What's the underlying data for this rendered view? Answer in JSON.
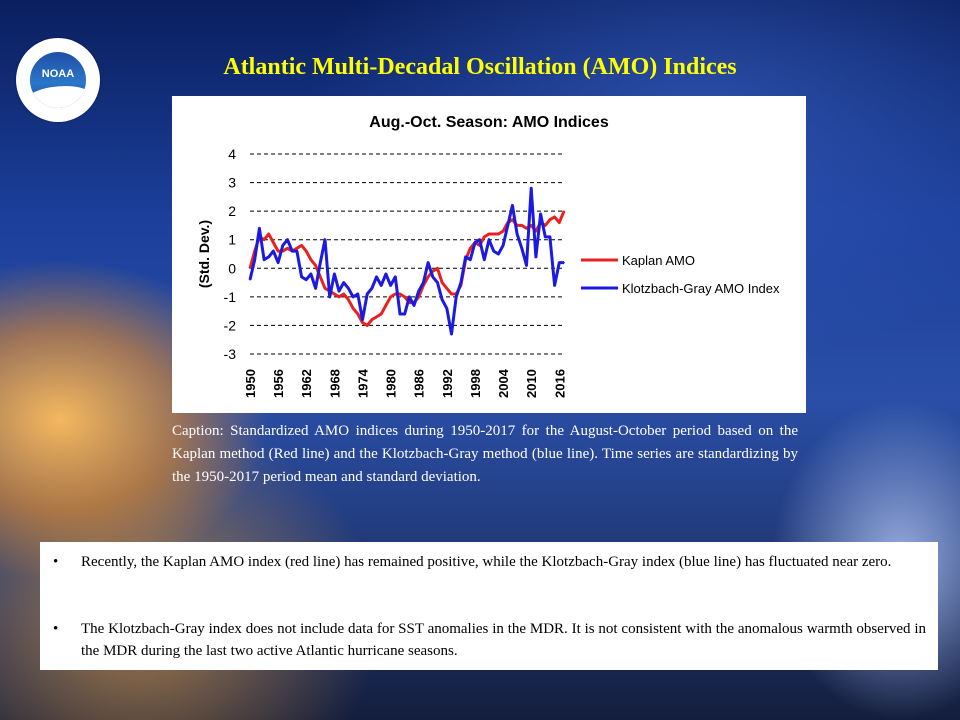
{
  "slide": {
    "title": "Atlantic Multi-Decadal Oscillation (AMO) Indices",
    "logo_text": "NOAA",
    "caption": "Caption: Standardized AMO indices during 1950-2017 for the August-October period based on the Kaplan method (Red line) and the Klotzbach-Gray method (blue line). Time series are standardizing by the 1950-2017 period mean and standard deviation.",
    "bullets": [
      "Recently, the Kaplan AMO index (red line) has remained positive, while the Klotzbach-Gray index (blue line) has fluctuated near zero.",
      "The Klotzbach-Gray index does not include data for SST anomalies in the MDR. It is not consistent with the anomalous warmth observed in the MDR during the last two active Atlantic hurricane seasons."
    ],
    "colors": {
      "title": "#ffff00",
      "kaplan": "#e8231f",
      "kg": "#1a1ae0"
    }
  },
  "chart_data": {
    "type": "line",
    "title": "Aug.-Oct. Season: AMO Indices",
    "xlabel": "",
    "ylabel": "(Std. Dev.)",
    "ylim": [
      -3,
      4
    ],
    "yticks": [
      "4",
      "3",
      "2",
      "1",
      "0",
      "-1",
      "-2",
      "-3"
    ],
    "xticks": [
      "1950",
      "1956",
      "1962",
      "1968",
      "1974",
      "1980",
      "1986",
      "1992",
      "1998",
      "2004",
      "2010",
      "2016"
    ],
    "grid": "dashed horizontal",
    "legend": "right",
    "x": [
      1950,
      1951,
      1952,
      1953,
      1954,
      1955,
      1956,
      1957,
      1958,
      1959,
      1960,
      1961,
      1962,
      1963,
      1964,
      1965,
      1966,
      1967,
      1968,
      1969,
      1970,
      1971,
      1972,
      1973,
      1974,
      1975,
      1976,
      1977,
      1978,
      1979,
      1980,
      1981,
      1982,
      1983,
      1984,
      1985,
      1986,
      1987,
      1988,
      1989,
      1990,
      1991,
      1992,
      1993,
      1994,
      1995,
      1996,
      1997,
      1998,
      1999,
      2000,
      2001,
      2002,
      2003,
      2004,
      2005,
      2006,
      2007,
      2008,
      2009,
      2010,
      2011,
      2012,
      2013,
      2014,
      2015,
      2016,
      2017
    ],
    "series": [
      {
        "name": "Kaplan AMO",
        "color": "#e8231f",
        "values": [
          0.0,
          0.6,
          1.1,
          1.0,
          1.2,
          0.9,
          0.6,
          0.6,
          0.7,
          0.6,
          0.7,
          0.8,
          0.6,
          0.3,
          0.1,
          -0.3,
          -0.7,
          -0.8,
          -0.9,
          -1.0,
          -0.9,
          -1.1,
          -1.4,
          -1.6,
          -1.9,
          -2.0,
          -1.8,
          -1.7,
          -1.6,
          -1.3,
          -1.0,
          -0.9,
          -0.9,
          -1.0,
          -1.2,
          -1.2,
          -1.0,
          -0.6,
          -0.3,
          -0.1,
          0.0,
          -0.5,
          -0.7,
          -0.9,
          -0.9,
          -0.6,
          0.3,
          0.7,
          0.9,
          0.8,
          1.1,
          1.2,
          1.2,
          1.2,
          1.3,
          1.6,
          1.7,
          1.5,
          1.5,
          1.4,
          1.5,
          1.3,
          1.6,
          1.5,
          1.7,
          1.8,
          1.6,
          2.0
        ]
      },
      {
        "name": "Klotzbach-Gray AMO Index",
        "color": "#1a1ae0",
        "values": [
          -0.4,
          0.3,
          1.4,
          0.3,
          0.4,
          0.6,
          0.2,
          0.8,
          1.0,
          0.6,
          0.6,
          -0.3,
          -0.4,
          -0.2,
          -0.7,
          0.2,
          1.0,
          -1.0,
          -0.2,
          -0.8,
          -0.5,
          -0.7,
          -1.0,
          -0.9,
          -1.8,
          -0.9,
          -0.7,
          -0.3,
          -0.6,
          -0.2,
          -0.6,
          -0.3,
          -1.6,
          -1.6,
          -1.0,
          -1.3,
          -0.8,
          -0.5,
          0.2,
          -0.3,
          -0.5,
          -1.1,
          -1.4,
          -2.3,
          -1.0,
          -0.5,
          0.4,
          0.3,
          0.9,
          1.0,
          0.3,
          1.0,
          0.6,
          0.5,
          0.8,
          1.5,
          2.2,
          1.2,
          0.7,
          0.1,
          2.8,
          0.4,
          1.9,
          1.1,
          1.1,
          -0.6,
          0.2,
          0.2
        ]
      }
    ]
  }
}
